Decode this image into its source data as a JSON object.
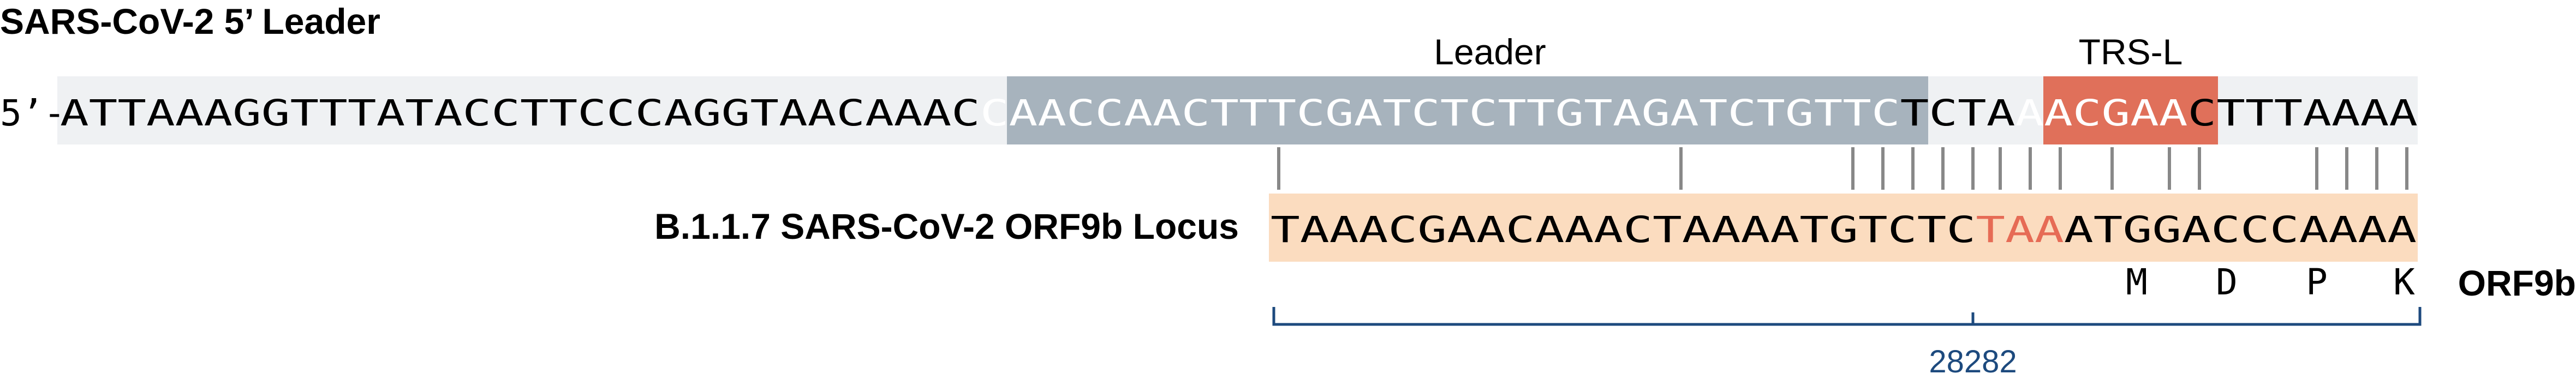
{
  "title": "SARS-CoV-2 5’ Leader",
  "prefix": "5’-",
  "leader_seq": "ATTAAAGGTTTATACCTTCCCAGGTAACAAACCAACCAACTTTCGATCTCTTGTAGATCTGTTCTCTAAACGAACTTTAAAA",
  "leader_label": "Leader",
  "trs_label": "TRS-L",
  "locus_label": "B.1.1.7 SARS-CoV-2 ORF9b Locus",
  "locus_seq": "TAAACGAACAAACTAAAATGTCTCTAAATGGACCCAAAA",
  "orf_label": "ORF9b",
  "amino_acids": [
    "M",
    "D",
    "P",
    "K"
  ],
  "genome_position": "28282",
  "colors": {
    "top_background": "#eff1f3",
    "leader_box": "#a7b3bd",
    "trs_box": "#e0705a",
    "locus_box": "#fbdcbf",
    "highlight_text": "#e66b55",
    "match_line": "#888888",
    "bracket": "#1d4a7e"
  }
}
